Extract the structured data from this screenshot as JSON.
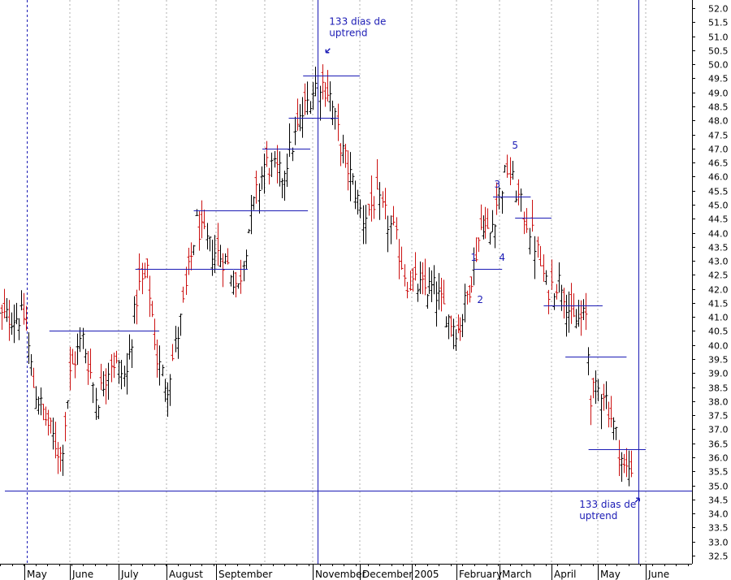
{
  "chart_data": {
    "type": "bar",
    "subtype": "ohlc",
    "y_axis": {
      "min": 32.5,
      "max": 52.0,
      "step": 0.5,
      "position": "right"
    },
    "x_axis": {
      "months": [
        {
          "label": "May",
          "x": 0
        },
        {
          "label": "June",
          "x": 1
        },
        {
          "label": "July",
          "x": 2
        },
        {
          "label": "August",
          "x": 3
        },
        {
          "label": "September",
          "x": 4
        },
        {
          "label": "November",
          "x": 6
        },
        {
          "label": "December",
          "x": 7
        },
        {
          "label": "2005",
          "x": 8
        },
        {
          "label": "February",
          "x": 9
        },
        {
          "label": "March",
          "x": 10
        },
        {
          "label": "April",
          "x": 11
        },
        {
          "label": "May",
          "x": 12
        },
        {
          "label": "June",
          "x": 13
        }
      ]
    },
    "colors": {
      "up": "#000000",
      "down": "#cc1111",
      "line": "#1b1bb5",
      "grid": "#b0b0b0"
    },
    "anchors": [
      {
        "x": 0,
        "y": 41.0
      },
      {
        "x": 0.2,
        "y": 38.5
      },
      {
        "x": 0.55,
        "y": 37.0
      },
      {
        "x": 0.8,
        "y": 36.0
      },
      {
        "x": 1.0,
        "y": 39.0
      },
      {
        "x": 1.25,
        "y": 40.3
      },
      {
        "x": 1.55,
        "y": 38.0
      },
      {
        "x": 1.85,
        "y": 39.5
      },
      {
        "x": 2.15,
        "y": 38.8
      },
      {
        "x": 2.4,
        "y": 42.0
      },
      {
        "x": 2.6,
        "y": 42.5
      },
      {
        "x": 2.8,
        "y": 39.5
      },
      {
        "x": 3.0,
        "y": 38.5
      },
      {
        "x": 3.3,
        "y": 41.0
      },
      {
        "x": 3.6,
        "y": 44.3
      },
      {
        "x": 3.85,
        "y": 43.5
      },
      {
        "x": 4.2,
        "y": 43.0
      },
      {
        "x": 4.45,
        "y": 42.0
      },
      {
        "x": 4.7,
        "y": 44.5
      },
      {
        "x": 5.0,
        "y": 46.5
      },
      {
        "x": 5.35,
        "y": 46.0
      },
      {
        "x": 5.6,
        "y": 47.3
      },
      {
        "x": 5.8,
        "y": 48.3
      },
      {
        "x": 6.1,
        "y": 49.5
      },
      {
        "x": 6.35,
        "y": 49.0
      },
      {
        "x": 6.6,
        "y": 47.0
      },
      {
        "x": 6.9,
        "y": 45.5
      },
      {
        "x": 7.05,
        "y": 44.5
      },
      {
        "x": 7.3,
        "y": 45.2
      },
      {
        "x": 7.65,
        "y": 44.0
      },
      {
        "x": 7.9,
        "y": 42.3
      },
      {
        "x": 8.2,
        "y": 42.0
      },
      {
        "x": 8.5,
        "y": 42.0
      },
      {
        "x": 8.8,
        "y": 41.0
      },
      {
        "x": 9.05,
        "y": 40.5
      },
      {
        "x": 9.35,
        "y": 42.5
      },
      {
        "x": 9.6,
        "y": 44.5
      },
      {
        "x": 9.75,
        "y": 43.8
      },
      {
        "x": 10.0,
        "y": 45.5
      },
      {
        "x": 10.15,
        "y": 46.3
      },
      {
        "x": 10.4,
        "y": 45.0
      },
      {
        "x": 10.7,
        "y": 43.5
      },
      {
        "x": 10.9,
        "y": 42.0
      },
      {
        "x": 11.2,
        "y": 42.3
      },
      {
        "x": 11.45,
        "y": 40.8
      },
      {
        "x": 11.75,
        "y": 41.0
      },
      {
        "x": 11.85,
        "y": 38.2
      },
      {
        "x": 12.1,
        "y": 38.5
      },
      {
        "x": 12.35,
        "y": 37.0
      },
      {
        "x": 12.55,
        "y": 35.5
      },
      {
        "x": 12.7,
        "y": 35.7
      }
    ],
    "bar_count": 250,
    "support_line": {
      "y": 34.8
    },
    "vertical_lines": [
      {
        "x": 0.05,
        "style": "dotted"
      },
      {
        "x": 6.1,
        "style": "solid"
      },
      {
        "x": 12.85,
        "style": "solid"
      }
    ],
    "horizontal_segments": [
      {
        "x1": 0.55,
        "x2": 2.85,
        "y": 40.5
      },
      {
        "x1": 2.35,
        "x2": 4.65,
        "y": 42.7
      },
      {
        "x1": 3.55,
        "x2": 5.9,
        "y": 44.8
      },
      {
        "x1": 4.95,
        "x2": 5.95,
        "y": 47.0
      },
      {
        "x1": 5.5,
        "x2": 6.55,
        "y": 48.1
      },
      {
        "x1": 5.8,
        "x2": 7.0,
        "y": 49.6
      },
      {
        "x1": 9.4,
        "x2": 10.05,
        "y": 42.7
      },
      {
        "x1": 9.85,
        "x2": 10.6,
        "y": 45.3
      },
      {
        "x1": 10.3,
        "x2": 11.0,
        "y": 44.55
      },
      {
        "x1": 10.85,
        "x2": 12.1,
        "y": 41.4
      },
      {
        "x1": 11.3,
        "x2": 12.6,
        "y": 39.6
      },
      {
        "x1": 11.8,
        "x2": 13.0,
        "y": 36.3
      }
    ],
    "wave_labels": [
      {
        "text": "1",
        "x": 9.4,
        "y": 43.0
      },
      {
        "text": "2",
        "x": 9.55,
        "y": 41.5
      },
      {
        "text": "3",
        "x": 9.95,
        "y": 45.6
      },
      {
        "text": "4",
        "x": 10.05,
        "y": 43.0
      },
      {
        "text": "5",
        "x": 10.3,
        "y": 47.0
      }
    ],
    "annotations": [
      {
        "text": [
          "133 dias de",
          "uptrend"
        ],
        "x": 6.35,
        "y": 51.4,
        "arrow_dir": "down-left"
      },
      {
        "text": [
          "133 dias de",
          "uptrend"
        ],
        "x": 11.6,
        "y": 34.2,
        "arrow_dir": "up-right"
      }
    ]
  }
}
